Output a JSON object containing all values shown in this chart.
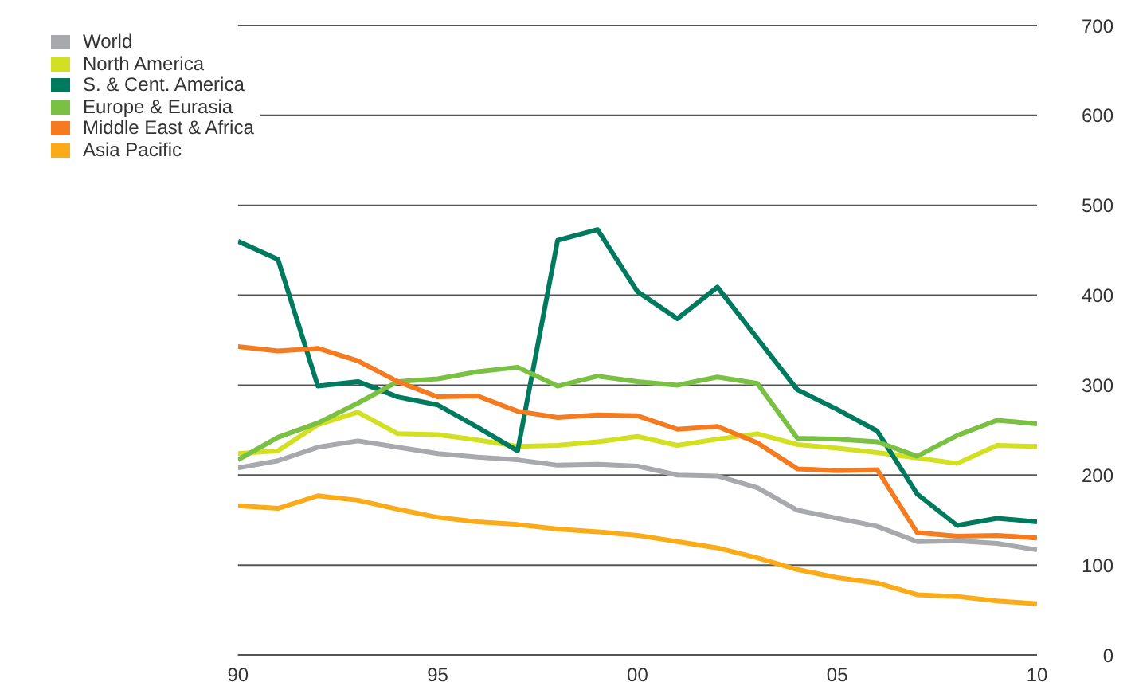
{
  "chart_data": {
    "type": "line",
    "x": [
      1990,
      1991,
      1992,
      1993,
      1994,
      1995,
      1996,
      1997,
      1998,
      1999,
      2000,
      2001,
      2002,
      2003,
      2004,
      2005,
      2006,
      2007,
      2008,
      2009,
      2010
    ],
    "series": [
      {
        "name": "World",
        "color": "#a7a9ac",
        "values": [
          208,
          216,
          231,
          238,
          231,
          224,
          220,
          217,
          211,
          212,
          210,
          200,
          199,
          186,
          161,
          152,
          143,
          126,
          127,
          124,
          117
        ]
      },
      {
        "name": "North America",
        "color": "#d2e021",
        "values": [
          224,
          227,
          256,
          270,
          246,
          245,
          239,
          232,
          233,
          237,
          243,
          233,
          240,
          246,
          234,
          230,
          225,
          219,
          213,
          233,
          232
        ]
      },
      {
        "name": "S. & Cent. America",
        "color": "#007a5e",
        "values": [
          460,
          440,
          299,
          304,
          287,
          278,
          253,
          227,
          461,
          473,
          404,
          374,
          409,
          352,
          295,
          273,
          249,
          179,
          144,
          152,
          148
        ]
      },
      {
        "name": "Europe & Eurasia",
        "color": "#7ac143",
        "values": [
          217,
          242,
          258,
          280,
          304,
          307,
          315,
          320,
          299,
          310,
          304,
          300,
          309,
          302,
          241,
          240,
          237,
          221,
          244,
          261,
          257
        ]
      },
      {
        "name": "Middle East & Africa",
        "color": "#f47b20",
        "values": [
          343,
          338,
          341,
          327,
          304,
          287,
          288,
          271,
          264,
          267,
          266,
          251,
          254,
          236,
          207,
          205,
          206,
          136,
          132,
          133,
          130
        ]
      },
      {
        "name": "Asia Pacific",
        "color": "#fbab18",
        "values": [
          166,
          163,
          177,
          172,
          162,
          153,
          148,
          145,
          140,
          137,
          133,
          126,
          119,
          108,
          95,
          86,
          80,
          67,
          65,
          60,
          57
        ]
      }
    ],
    "xlim": [
      1990,
      2010
    ],
    "xticks": [
      {
        "value": 1990,
        "label": "90"
      },
      {
        "value": 1995,
        "label": "95"
      },
      {
        "value": 2000,
        "label": "00"
      },
      {
        "value": 2005,
        "label": "05"
      },
      {
        "value": 2010,
        "label": "10"
      }
    ],
    "ylim": [
      0,
      700
    ],
    "yticks": [
      0,
      100,
      200,
      300,
      400,
      500,
      600,
      700
    ],
    "grid": "y",
    "legend": "top left",
    "marker": "none",
    "line_style": "solid"
  }
}
